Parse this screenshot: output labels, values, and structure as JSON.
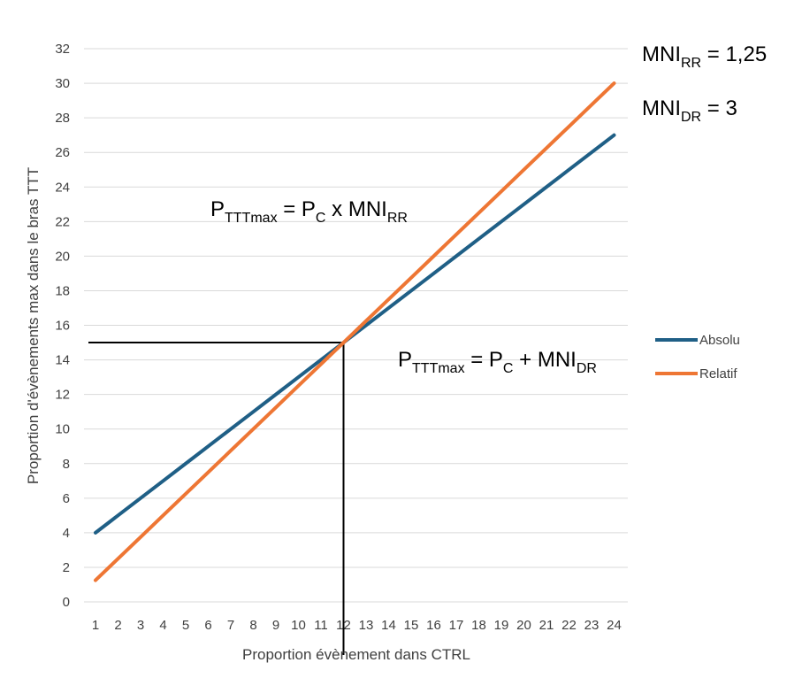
{
  "chart_data": {
    "type": "line",
    "xlabel": "Proportion évènement dans CTRL",
    "ylabel": "Proportion d'évènements max dans le bras TTT",
    "x": [
      1,
      2,
      3,
      4,
      5,
      6,
      7,
      8,
      9,
      10,
      11,
      12,
      13,
      14,
      15,
      16,
      17,
      18,
      19,
      20,
      21,
      22,
      23,
      24
    ],
    "ylim": [
      0,
      32
    ],
    "y_ticks": [
      0,
      2,
      4,
      6,
      8,
      10,
      12,
      14,
      16,
      18,
      20,
      22,
      24,
      26,
      28,
      30,
      32
    ],
    "grid": true,
    "legend_position": "right",
    "series": [
      {
        "name": "Absolu",
        "color": "#1f5f86",
        "values": [
          4,
          5,
          6,
          7,
          8,
          9,
          10,
          11,
          12,
          13,
          14,
          15,
          16,
          17,
          18,
          19,
          20,
          21,
          22,
          23,
          24,
          25,
          26,
          27
        ]
      },
      {
        "name": "Relatif",
        "color": "#ee7634",
        "values": [
          1.25,
          2.5,
          3.75,
          5,
          6.25,
          7.5,
          8.75,
          10,
          11.25,
          12.5,
          13.75,
          15,
          16.25,
          17.5,
          18.75,
          20,
          21.25,
          22.5,
          23.75,
          25,
          26.25,
          27.5,
          28.75,
          30
        ]
      }
    ],
    "reference_point": {
      "x": 12,
      "y": 15
    },
    "annotations": {
      "formula_relative": {
        "base": "P",
        "sub1": "TTTmax",
        "mid1": " = P",
        "sub2": "C",
        "mid2": " x MNI",
        "sub3": "RR"
      },
      "formula_absolute": {
        "base": "P",
        "sub1": "TTTmax",
        "mid1": " = P",
        "sub2": "C",
        "mid2": " + MNI",
        "sub3": "DR"
      },
      "mni_rr": {
        "base": "MNI",
        "sub": "RR",
        "rest": " = 1,25"
      },
      "mni_dr": {
        "base": "MNI",
        "sub": "DR",
        "rest": " = 3"
      }
    }
  }
}
